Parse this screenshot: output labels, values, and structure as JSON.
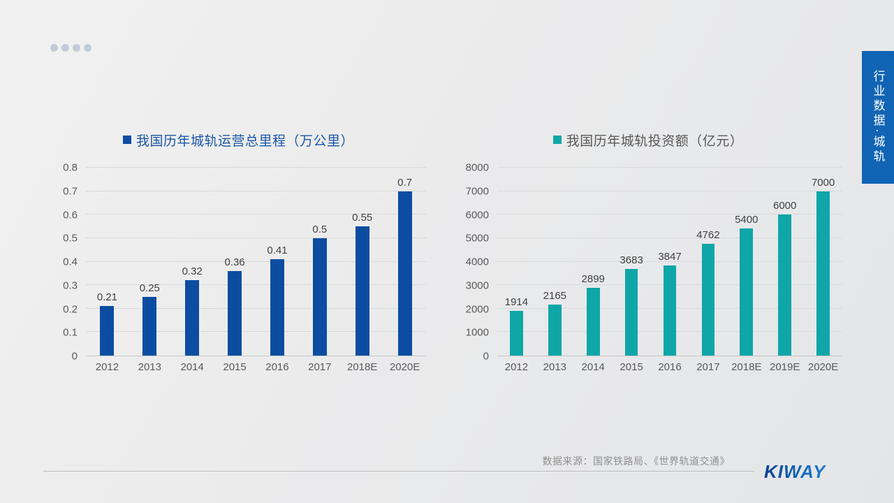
{
  "slide": {
    "decor_dots": 4,
    "side_tab": {
      "label": "行业数据·城轨",
      "color": "#1164b3"
    },
    "source_note": "数据来源：国家铁路局、《世界轨道交通》",
    "logo_text": "KIWAY"
  },
  "chart_data": [
    {
      "type": "bar",
      "title": "我国历年城轨运营总里程（万公里）",
      "title_color": "#1b57a6",
      "bar_color": "#0c4da2",
      "legend_position": "top",
      "grid": true,
      "categories": [
        "2012",
        "2013",
        "2014",
        "2015",
        "2016",
        "2017",
        "2018E",
        "2020E"
      ],
      "values": [
        0.21,
        0.25,
        0.32,
        0.36,
        0.41,
        0.5,
        0.55,
        0.7
      ],
      "ylim": [
        0,
        0.8
      ],
      "yticks": [
        "0",
        "0.1",
        "0.2",
        "0.3",
        "0.4",
        "0.5",
        "0.6",
        "0.7",
        "0.8"
      ]
    },
    {
      "type": "bar",
      "title": "我国历年城轨投资额（亿元）",
      "title_color": "#595959",
      "bar_color": "#0fa6a8",
      "legend_position": "top",
      "grid": true,
      "categories": [
        "2012",
        "2013",
        "2014",
        "2015",
        "2016",
        "2017",
        "2018E",
        "2019E",
        "2020E"
      ],
      "values": [
        1914,
        2165,
        2899,
        3683,
        3847,
        4762,
        5400,
        6000,
        7000
      ],
      "ylim": [
        0,
        8000
      ],
      "yticks": [
        "0",
        "1000",
        "2000",
        "3000",
        "4000",
        "5000",
        "6000",
        "7000",
        "8000"
      ]
    }
  ]
}
